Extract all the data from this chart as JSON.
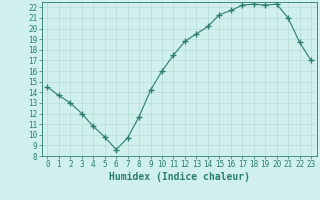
{
  "x": [
    0,
    1,
    2,
    3,
    4,
    5,
    6,
    7,
    8,
    9,
    10,
    11,
    12,
    13,
    14,
    15,
    16,
    17,
    18,
    19,
    20,
    21,
    22,
    23
  ],
  "y": [
    14.5,
    13.7,
    13.0,
    12.0,
    10.8,
    9.8,
    8.6,
    9.7,
    11.7,
    14.2,
    16.0,
    17.5,
    18.8,
    19.5,
    20.2,
    21.3,
    21.7,
    22.2,
    22.3,
    22.2,
    22.3,
    21.0,
    18.7,
    17.0
  ],
  "line_color": "#2d7d72",
  "marker": "+",
  "marker_size": 4,
  "bg_color": "#cff0ec",
  "grid_color": "#b8ddd8",
  "xlabel": "Humidex (Indice chaleur)",
  "ylim": [
    8,
    22.5
  ],
  "xlim": [
    -0.5,
    23.5
  ],
  "yticks": [
    8,
    9,
    10,
    11,
    12,
    13,
    14,
    15,
    16,
    17,
    18,
    19,
    20,
    21,
    22
  ],
  "xticks": [
    0,
    1,
    2,
    3,
    4,
    5,
    6,
    7,
    8,
    9,
    10,
    11,
    12,
    13,
    14,
    15,
    16,
    17,
    18,
    19,
    20,
    21,
    22,
    23
  ],
  "tick_fontsize": 5.5,
  "xlabel_fontsize": 7,
  "axis_color": "#2d7d72",
  "linewidth": 0.8,
  "marker_linewidth": 1.0
}
